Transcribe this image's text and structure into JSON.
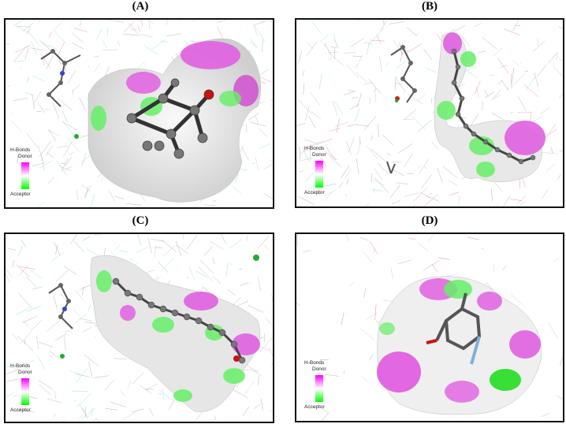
{
  "panels": [
    {
      "id": "A",
      "title": "(A)"
    },
    {
      "id": "B",
      "title": "(B)"
    },
    {
      "id": "C",
      "title": "(C)"
    },
    {
      "id": "D",
      "title": "(D)"
    }
  ],
  "legend": {
    "title": "H-Bonds",
    "donor": "Donor",
    "acceptor": "Acceptor"
  },
  "colors": {
    "donor": "#ff00ff",
    "acceptor": "#00ff00",
    "neutral": "#ffffff",
    "border": "#111111"
  }
}
